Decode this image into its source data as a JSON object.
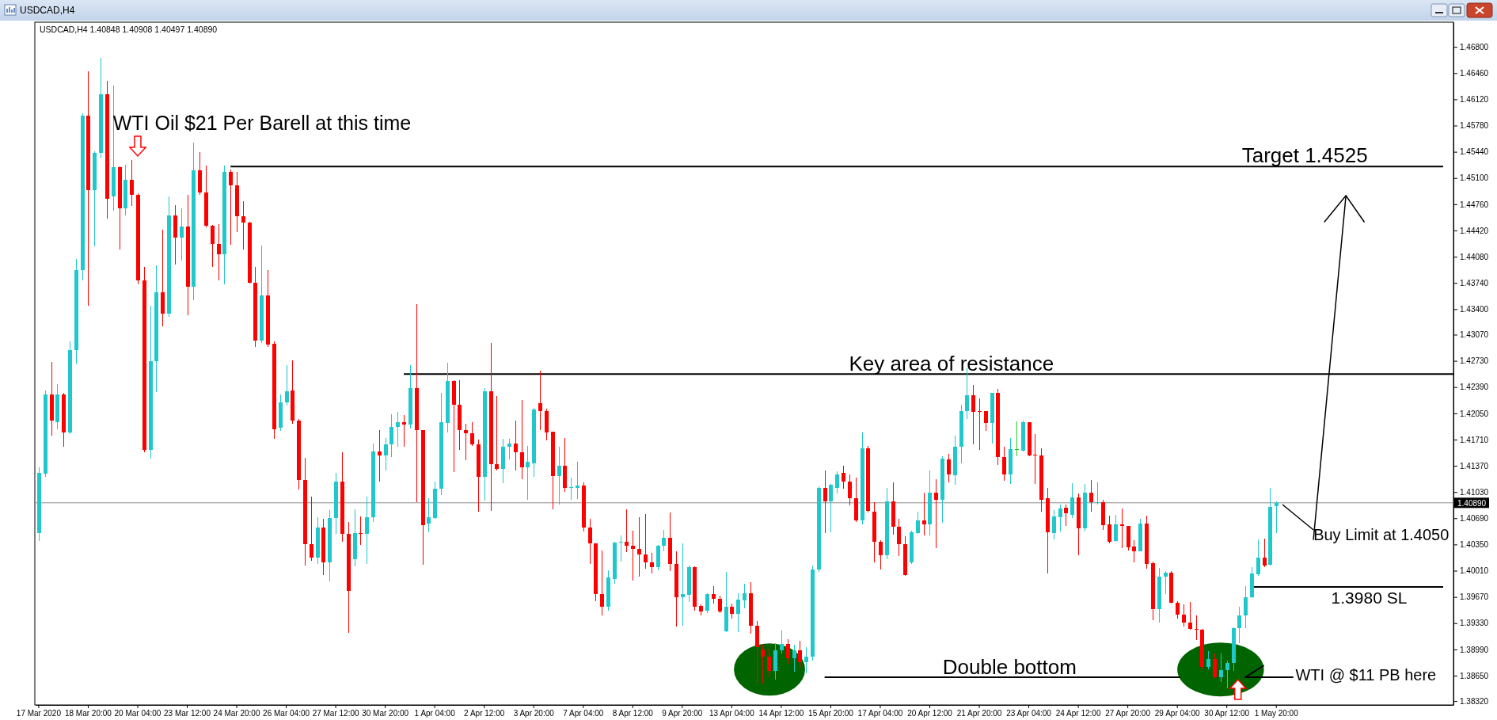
{
  "chart_data": {
    "type": "candlestick",
    "title": "USDCAD,H4",
    "subtitle": "USDCAD,H4 1.40848 1.40908 1.40497 1.40890",
    "categories": [
      "17 Mar 2020",
      null,
      null,
      null,
      null,
      null,
      null,
      null,
      "18 Mar 20:00",
      null,
      null,
      null,
      null,
      null,
      null,
      null,
      "20 Mar 04:00",
      null,
      null,
      null,
      null,
      null,
      null,
      null,
      "23 Mar 12:00",
      null,
      null,
      null,
      null,
      null,
      null,
      null,
      "24 Mar 20:00",
      null,
      null,
      null,
      null,
      null,
      null,
      null,
      "26 Mar 04:00",
      null,
      null,
      null,
      null,
      null,
      null,
      null,
      "27 Mar 12:00",
      null,
      null,
      null,
      null,
      null,
      null,
      null,
      "30 Mar 20:00",
      null,
      null,
      null,
      null,
      null,
      null,
      null,
      "1 Apr 04:00",
      null,
      null,
      null,
      null,
      null,
      null,
      null,
      "2 Apr 12:00",
      null,
      null,
      null,
      null,
      null,
      null,
      null,
      "3 Apr 20:00",
      null,
      null,
      null,
      null,
      null,
      null,
      null,
      "7 Apr 04:00",
      null,
      null,
      null,
      null,
      null,
      null,
      null,
      "8 Apr 12:00",
      null,
      null,
      null,
      null,
      null,
      null,
      null,
      "9 Apr 20:00",
      null,
      null,
      null,
      null,
      null,
      null,
      null,
      "13 Apr 04:00",
      null,
      null,
      null,
      null,
      null,
      null,
      null,
      "14 Apr 12:00",
      null,
      null,
      null,
      null,
      null,
      null,
      null,
      "15 Apr 20:00",
      null,
      null,
      null,
      null,
      null,
      null,
      null,
      "17 Apr 04:00",
      null,
      null,
      null,
      null,
      null,
      null,
      null,
      "20 Apr 12:00",
      null,
      null,
      null,
      null,
      null,
      null,
      null,
      "21 Apr 20:00",
      null,
      null,
      null,
      null,
      null,
      null,
      null,
      "23 Apr 04:00",
      null,
      null,
      null,
      null,
      null,
      null,
      null,
      "24 Apr 12:00",
      null,
      null,
      null,
      null,
      null,
      null,
      null,
      "27 Apr 20:00",
      null,
      null,
      null,
      null,
      null,
      null,
      null,
      "29 Apr 04:00",
      null,
      null,
      null,
      null,
      null,
      null,
      null,
      "30 Apr 12:00",
      null,
      null,
      null,
      null,
      null,
      null,
      null,
      "1 May 20:00",
      null,
      null,
      null,
      null,
      null,
      null,
      null,
      null,
      null,
      null,
      null,
      null,
      null,
      null,
      null,
      null,
      null,
      null,
      null,
      null,
      null,
      null,
      null,
      null,
      null,
      null,
      null,
      null
    ],
    "ohlc": [
      [
        1.405,
        1.4135,
        1.404,
        1.4128
      ],
      [
        1.4127,
        1.4235,
        1.4123,
        1.4229
      ],
      [
        1.4229,
        1.4272,
        1.4176,
        1.4196
      ],
      [
        1.4194,
        1.4243,
        1.4184,
        1.4229
      ],
      [
        1.4229,
        1.4231,
        1.4162,
        1.418
      ],
      [
        1.418,
        1.4298,
        1.4178,
        1.4287
      ],
      [
        1.4287,
        1.4405,
        1.4269,
        1.4391
      ],
      [
        1.4391,
        1.4594,
        1.4377,
        1.4591
      ],
      [
        1.4591,
        1.4648,
        1.4344,
        1.4494
      ],
      [
        1.4494,
        1.4545,
        1.4421,
        1.4543
      ],
      [
        1.4543,
        1.4666,
        1.4535,
        1.4619
      ],
      [
        1.4619,
        1.4636,
        1.4457,
        1.4483
      ],
      [
        1.4486,
        1.463,
        1.4468,
        1.4524
      ],
      [
        1.4524,
        1.4525,
        1.4417,
        1.4471
      ],
      [
        1.4471,
        1.4527,
        1.4461,
        1.4508
      ],
      [
        1.4508,
        1.4533,
        1.4474,
        1.4488
      ],
      [
        1.4488,
        1.449,
        1.4372,
        1.4377
      ],
      [
        1.4377,
        1.4395,
        1.4154,
        1.4158
      ],
      [
        1.4158,
        1.4344,
        1.4146,
        1.4273
      ],
      [
        1.4273,
        1.4397,
        1.4233,
        1.4362
      ],
      [
        1.4362,
        1.4443,
        1.4318,
        1.4334
      ],
      [
        1.4334,
        1.4486,
        1.433,
        1.4462
      ],
      [
        1.4462,
        1.4475,
        1.4398,
        1.4433
      ],
      [
        1.4433,
        1.4471,
        1.4403,
        1.4447
      ],
      [
        1.4447,
        1.4488,
        1.4332,
        1.4369
      ],
      [
        1.4369,
        1.4556,
        1.4352,
        1.452
      ],
      [
        1.452,
        1.4544,
        1.4488,
        1.4491
      ],
      [
        1.4491,
        1.4526,
        1.4446,
        1.4448
      ],
      [
        1.4448,
        1.4449,
        1.4395,
        1.4425
      ],
      [
        1.4425,
        1.445,
        1.4377,
        1.4411
      ],
      [
        1.4411,
        1.4526,
        1.4372,
        1.4518
      ],
      [
        1.4518,
        1.4521,
        1.4423,
        1.4501
      ],
      [
        1.4501,
        1.4518,
        1.444,
        1.446
      ],
      [
        1.446,
        1.448,
        1.4417,
        1.4452
      ],
      [
        1.4452,
        1.4453,
        1.4373,
        1.4374
      ],
      [
        1.4374,
        1.4395,
        1.4291,
        1.4299
      ],
      [
        1.4299,
        1.4422,
        1.4296,
        1.4358
      ],
      [
        1.4358,
        1.4391,
        1.4291,
        1.4294
      ],
      [
        1.4295,
        1.4298,
        1.4172,
        1.4184
      ],
      [
        1.4186,
        1.4229,
        1.4182,
        1.4219
      ],
      [
        1.4219,
        1.4267,
        1.4215,
        1.4234
      ],
      [
        1.4235,
        1.4274,
        1.4191,
        1.4196
      ],
      [
        1.4196,
        1.4198,
        1.4106,
        1.4119
      ],
      [
        1.4119,
        1.4147,
        1.4008,
        1.4035
      ],
      [
        1.4035,
        1.4097,
        1.4014,
        1.4018
      ],
      [
        1.4018,
        1.407,
        1.401,
        1.4057
      ],
      [
        1.4057,
        1.4068,
        1.3995,
        1.4012
      ],
      [
        1.4012,
        1.408,
        1.3987,
        1.4069
      ],
      [
        1.4069,
        1.4128,
        1.4049,
        1.4117
      ],
      [
        1.4117,
        1.4154,
        1.4038,
        1.4049
      ],
      [
        1.4049,
        1.4064,
        1.392,
        1.3975
      ],
      [
        1.4016,
        1.4081,
        1.4007,
        1.405
      ],
      [
        1.405,
        1.4071,
        1.4034,
        1.4049
      ],
      [
        1.4049,
        1.4097,
        1.401,
        1.407
      ],
      [
        1.407,
        1.4166,
        1.4064,
        1.4156
      ],
      [
        1.4156,
        1.4183,
        1.4117,
        1.415
      ],
      [
        1.415,
        1.4173,
        1.4131,
        1.4165
      ],
      [
        1.4165,
        1.4204,
        1.4148,
        1.4187
      ],
      [
        1.4187,
        1.4207,
        1.4162,
        1.4194
      ],
      [
        1.4194,
        1.4203,
        1.4162,
        1.419
      ],
      [
        1.419,
        1.4267,
        1.4185,
        1.4238
      ],
      [
        1.4238,
        1.4347,
        1.409,
        1.4183
      ],
      [
        1.4183,
        1.4183,
        1.4009,
        1.406
      ],
      [
        1.4062,
        1.4095,
        1.4051,
        1.407
      ],
      [
        1.4069,
        1.4117,
        1.4068,
        1.4107
      ],
      [
        1.4107,
        1.4231,
        1.4099,
        1.4194
      ],
      [
        1.4193,
        1.4271,
        1.418,
        1.4247
      ],
      [
        1.4247,
        1.4248,
        1.4129,
        1.4216
      ],
      [
        1.4216,
        1.4248,
        1.4158,
        1.4183
      ],
      [
        1.4183,
        1.4191,
        1.4144,
        1.4179
      ],
      [
        1.4179,
        1.4194,
        1.4163,
        1.4165
      ],
      [
        1.4165,
        1.4171,
        1.4077,
        1.4123
      ],
      [
        1.4123,
        1.4238,
        1.4092,
        1.4234
      ],
      [
        1.4234,
        1.4296,
        1.4079,
        1.4139
      ],
      [
        1.4139,
        1.4227,
        1.4131,
        1.4133
      ],
      [
        1.4133,
        1.4172,
        1.4114,
        1.4162
      ],
      [
        1.4162,
        1.4172,
        1.4145,
        1.4166
      ],
      [
        1.4166,
        1.4196,
        1.4131,
        1.4154
      ],
      [
        1.4155,
        1.4222,
        1.412,
        1.4135
      ],
      [
        1.4135,
        1.4163,
        1.4093,
        1.4142
      ],
      [
        1.414,
        1.4212,
        1.4123,
        1.421
      ],
      [
        1.4218,
        1.426,
        1.4183,
        1.4208
      ],
      [
        1.4208,
        1.4211,
        1.417,
        1.418
      ],
      [
        1.4181,
        1.4181,
        1.4081,
        1.4124
      ],
      [
        1.4124,
        1.4162,
        1.4087,
        1.4137
      ],
      [
        1.4137,
        1.4173,
        1.4103,
        1.4108
      ],
      [
        1.4108,
        1.4122,
        1.4093,
        1.4109
      ],
      [
        1.4108,
        1.4142,
        1.4094,
        1.4111
      ],
      [
        1.4111,
        1.4116,
        1.4052,
        1.4057
      ],
      [
        1.4057,
        1.4068,
        1.401,
        1.4036
      ],
      [
        1.4036,
        1.4036,
        1.3961,
        1.3971
      ],
      [
        1.3971,
        1.4027,
        1.3943,
        1.3954
      ],
      [
        1.3954,
        1.4002,
        1.3949,
        1.3992
      ],
      [
        1.399,
        1.4039,
        1.3984,
        1.4037
      ],
      [
        1.4037,
        1.4047,
        1.4013,
        1.4038
      ],
      [
        1.4038,
        1.4081,
        1.4025,
        1.4033
      ],
      [
        1.4033,
        1.4053,
        1.3988,
        1.4029
      ],
      [
        1.4029,
        1.407,
        1.3993,
        1.4022
      ],
      [
        1.4022,
        1.4074,
        1.4004,
        1.4012
      ],
      [
        1.4012,
        1.4024,
        1.3997,
        1.4006
      ],
      [
        1.4006,
        1.4034,
        1.4002,
        1.4033
      ],
      [
        1.4033,
        1.4054,
        1.4026,
        1.4044
      ],
      [
        1.4044,
        1.4076,
        1.4001,
        1.401
      ],
      [
        1.401,
        1.4026,
        1.3929,
        1.3967
      ],
      [
        1.3967,
        1.4036,
        1.393,
        1.3971
      ],
      [
        1.397,
        1.4008,
        1.396,
        1.4006
      ],
      [
        1.4006,
        1.4007,
        1.3949,
        1.3954
      ],
      [
        1.3955,
        1.3957,
        1.3943,
        1.3948
      ],
      [
        1.3949,
        1.3972,
        1.3946,
        1.3971
      ],
      [
        1.3971,
        1.3981,
        1.3958,
        1.3965
      ],
      [
        1.3965,
        1.3969,
        1.3946,
        1.3948
      ],
      [
        1.3922,
        1.3999,
        1.3921,
        1.3954
      ],
      [
        1.3954,
        1.3958,
        1.3939,
        1.3945
      ],
      [
        1.3945,
        1.3972,
        1.3921,
        1.3964
      ],
      [
        1.3963,
        1.3984,
        1.3952,
        1.3972
      ],
      [
        1.3972,
        1.3986,
        1.3919,
        1.393
      ],
      [
        1.393,
        1.3936,
        1.3854,
        1.3902
      ],
      [
        1.3899,
        1.3905,
        1.3855,
        1.389
      ],
      [
        1.389,
        1.39,
        1.3863,
        1.3871
      ],
      [
        1.3871,
        1.3907,
        1.386,
        1.3898
      ],
      [
        1.3898,
        1.3923,
        1.3894,
        1.3906
      ],
      [
        1.3906,
        1.3912,
        1.388,
        1.3888
      ],
      [
        1.3888,
        1.3905,
        1.387,
        1.3898
      ],
      [
        1.3898,
        1.391,
        1.3875,
        1.3882
      ],
      [
        1.3882,
        1.3902,
        1.3868,
        1.389
      ],
      [
        1.389,
        1.4008,
        1.3885,
        1.4003
      ],
      [
        1.4003,
        1.411,
        1.3999,
        1.4108
      ],
      [
        1.4108,
        1.4131,
        1.405,
        1.4091
      ],
      [
        1.4091,
        1.4113,
        1.4051,
        1.4112
      ],
      [
        1.4108,
        1.413,
        1.4101,
        1.4126
      ],
      [
        1.4128,
        1.4137,
        1.4107,
        1.4117
      ],
      [
        1.4117,
        1.4126,
        1.4086,
        1.4095
      ],
      [
        1.4095,
        1.4122,
        1.4064,
        1.4066
      ],
      [
        1.4066,
        1.418,
        1.4061,
        1.416
      ],
      [
        1.416,
        1.4163,
        1.4076,
        1.4079
      ],
      [
        1.4077,
        1.409,
        1.4012,
        1.4039
      ],
      [
        1.4039,
        1.4041,
        1.4003,
        1.4021
      ],
      [
        1.4021,
        1.4108,
        1.4016,
        1.4091
      ],
      [
        1.4091,
        1.4116,
        1.4048,
        1.4058
      ],
      [
        1.4058,
        1.4068,
        1.402,
        1.4035
      ],
      [
        1.4035,
        1.4046,
        1.3994,
        1.3995
      ],
      [
        1.4012,
        1.4053,
        1.401,
        1.4051
      ],
      [
        1.405,
        1.4077,
        1.4049,
        1.4066
      ],
      [
        1.4066,
        1.4102,
        1.4047,
        1.4061
      ],
      [
        1.4061,
        1.4131,
        1.4047,
        1.4102
      ],
      [
        1.4102,
        1.412,
        1.403,
        1.4093
      ],
      [
        1.4093,
        1.4149,
        1.4063,
        1.4146
      ],
      [
        1.4145,
        1.4152,
        1.4116,
        1.4126
      ],
      [
        1.4125,
        1.4176,
        1.4112,
        1.4162
      ],
      [
        1.4162,
        1.4216,
        1.414,
        1.4208
      ],
      [
        1.4208,
        1.4263,
        1.4198,
        1.4228
      ],
      [
        1.4228,
        1.4242,
        1.4165,
        1.4207
      ],
      [
        1.4208,
        1.4224,
        1.4158,
        1.4207
      ],
      [
        1.4208,
        1.4208,
        1.4182,
        1.4193
      ],
      [
        1.4193,
        1.4232,
        1.4166,
        1.4232
      ],
      [
        1.4232,
        1.4237,
        1.4138,
        1.4148
      ],
      [
        1.4148,
        1.4162,
        1.4118,
        1.4126
      ],
      [
        1.4126,
        1.4173,
        1.4113,
        1.4159
      ],
      [
        1.4159,
        1.4195,
        1.4149,
        1.4159
      ],
      [
        1.4157,
        1.4196,
        1.4156,
        1.4194
      ],
      [
        1.4194,
        1.4194,
        1.4149,
        1.415
      ],
      [
        1.4151,
        1.4178,
        1.4113,
        1.415
      ],
      [
        1.415,
        1.416,
        1.4078,
        1.4093
      ],
      [
        1.4095,
        1.4108,
        1.3997,
        1.4051
      ],
      [
        1.405,
        1.408,
        1.4042,
        1.4071
      ],
      [
        1.407,
        1.4087,
        1.4052,
        1.4082
      ],
      [
        1.4083,
        1.4087,
        1.4059,
        1.4075
      ],
      [
        1.4073,
        1.4114,
        1.4069,
        1.4096
      ],
      [
        1.4096,
        1.4101,
        1.4021,
        1.4056
      ],
      [
        1.4056,
        1.4113,
        1.4052,
        1.4102
      ],
      [
        1.4102,
        1.4119,
        1.4078,
        1.409
      ],
      [
        1.4089,
        1.4115,
        1.4087,
        1.409
      ],
      [
        1.409,
        1.4093,
        1.4054,
        1.406
      ],
      [
        1.4061,
        1.4072,
        1.4036,
        1.4039
      ],
      [
        1.404,
        1.4073,
        1.4038,
        1.4061
      ],
      [
        1.4061,
        1.4082,
        1.403,
        1.4059
      ],
      [
        1.4059,
        1.4059,
        1.4027,
        1.4031
      ],
      [
        1.4032,
        1.4041,
        1.4012,
        1.4026
      ],
      [
        1.4026,
        1.4068,
        1.4026,
        1.4062
      ],
      [
        1.4062,
        1.4072,
        1.4004,
        1.401
      ],
      [
        1.4011,
        1.4013,
        1.3937,
        1.3951
      ],
      [
        1.3951,
        1.4005,
        1.3934,
        1.3993
      ],
      [
        1.3993,
        1.4,
        1.3971,
        1.3998
      ],
      [
        1.3998,
        1.4001,
        1.3958,
        1.3959
      ],
      [
        1.3959,
        1.3961,
        1.3939,
        1.3944
      ],
      [
        1.3944,
        1.3957,
        1.3929,
        1.3934
      ],
      [
        1.3934,
        1.396,
        1.3925,
        1.3926
      ],
      [
        1.3926,
        1.3943,
        1.3911,
        1.3925
      ],
      [
        1.3925,
        1.3926,
        1.3873,
        1.3876
      ],
      [
        1.3876,
        1.3897,
        1.3873,
        1.3887
      ],
      [
        1.3887,
        1.3894,
        1.3862,
        1.3863
      ],
      [
        1.3863,
        1.3894,
        1.3857,
        1.3872
      ],
      [
        1.3872,
        1.3884,
        1.3849,
        1.3881
      ],
      [
        1.3881,
        1.3928,
        1.3871,
        1.3927
      ],
      [
        1.3927,
        1.3954,
        1.3907,
        1.3943
      ],
      [
        1.3943,
        1.3981,
        1.3927,
        1.3967
      ],
      [
        1.3967,
        1.4006,
        1.3966,
        1.3997
      ],
      [
        1.3996,
        1.4042,
        1.3994,
        1.4018
      ],
      [
        1.4018,
        1.4043,
        1.4006,
        1.4008
      ],
      [
        1.4009,
        1.4108,
        1.4008,
        1.4084
      ],
      [
        1.40848,
        1.40908,
        1.40497,
        1.4089
      ],
      null,
      null,
      null,
      null,
      null,
      null,
      null,
      null,
      null,
      null,
      null,
      null,
      null,
      null,
      null,
      null,
      null,
      null,
      null,
      null,
      null,
      null,
      null,
      null,
      null,
      null,
      null,
      null
    ],
    "colors": [
      "#20c8cc",
      "#20c8cc",
      "#ff0000",
      "#20c8cc",
      "#ff0000",
      "#20c8cc",
      "#20c8cc",
      "#20c8cc",
      "#ff0000",
      "#20c8cc",
      "#20c8cc",
      "#ff0000",
      "#20c8cc",
      "#ff0000",
      "#20c8cc",
      "#ff0000",
      "#ff0000",
      "#ff0000",
      "#20c8cc",
      "#20c8cc",
      "#ff0000",
      "#20c8cc",
      "#ff0000",
      "#20c8cc",
      "#ff0000",
      "#20c8cc",
      "#ff0000",
      "#ff0000",
      "#ff0000",
      "#ff0000",
      "#20c8cc",
      "#ff0000",
      "#ff0000",
      "#ff0000",
      "#ff0000",
      "#ff0000",
      "#20c8cc",
      "#ff0000",
      "#ff0000",
      "#20c8cc",
      "#20c8cc",
      "#ff0000",
      "#ff0000",
      "#ff0000",
      "#ff0000",
      "#20c8cc",
      "#ff0000",
      "#20c8cc",
      "#20c8cc",
      "#ff0000",
      "#ff0000",
      "#20c8cc",
      "#ff0000",
      "#20c8cc",
      "#20c8cc",
      "#ff0000",
      "#20c8cc",
      "#20c8cc",
      "#20c8cc",
      "#ff0000",
      "#20c8cc",
      "#ff0000",
      "#ff0000",
      "#20c8cc",
      "#20c8cc",
      "#20c8cc",
      "#20c8cc",
      "#ff0000",
      "#ff0000",
      "#ff0000",
      "#ff0000",
      "#ff0000",
      "#20c8cc",
      "#ff0000",
      "#ff0000",
      "#20c8cc",
      "#20c8cc",
      "#ff0000",
      "#ff0000",
      "#20c8cc",
      "#20c8cc",
      "#ff0000",
      "#ff0000",
      "#ff0000",
      "#20c8cc",
      "#ff0000",
      "#20c8cc",
      "#20c8cc",
      "#ff0000",
      "#ff0000",
      "#ff0000",
      "#ff0000",
      "#20c8cc",
      "#20c8cc",
      "#20c8cc",
      "#ff0000",
      "#ff0000",
      "#ff0000",
      "#ff0000",
      "#ff0000",
      "#20c8cc",
      "#20c8cc",
      "#ff0000",
      "#ff0000",
      "#20c8cc",
      "#20c8cc",
      "#ff0000",
      "#ff0000",
      "#20c8cc",
      "#ff0000",
      "#ff0000",
      "#20c8cc",
      "#ff0000",
      "#20c8cc",
      "#20c8cc",
      "#ff0000",
      "#ff0000",
      "#ff0000",
      "#ff0000",
      "#20c8cc",
      "#20c8cc",
      "#ff0000",
      "#20c8cc",
      "#ff0000",
      "#20c8cc",
      "#20c8cc",
      "#20c8cc",
      "#ff0000",
      "#20c8cc",
      "#20c8cc",
      "#ff0000",
      "#ff0000",
      "#ff0000",
      "#20c8cc",
      "#ff0000",
      "#ff0000",
      "#ff0000",
      "#20c8cc",
      "#ff0000",
      "#ff0000",
      "#ff0000",
      "#20c8cc",
      "#20c8cc",
      "#ff0000",
      "#20c8cc",
      "#ff0000",
      "#20c8cc",
      "#ff0000",
      "#20c8cc",
      "#20c8cc",
      "#20c8cc",
      "#ff0000",
      "#ff0000",
      "#ff0000",
      "#20c8cc",
      "#ff0000",
      "#ff0000",
      "#20c8cc",
      "#22cc22",
      "#20c8cc",
      "#ff0000",
      "#ff0000",
      "#ff0000",
      "#ff0000",
      "#20c8cc",
      "#20c8cc",
      "#ff0000",
      "#20c8cc",
      "#ff0000",
      "#20c8cc",
      "#ff0000",
      "#20c8cc",
      "#ff0000",
      "#ff0000",
      "#20c8cc",
      "#ff0000",
      "#ff0000",
      "#ff0000",
      "#20c8cc",
      "#ff0000",
      "#ff0000",
      "#20c8cc",
      "#20c8cc",
      "#ff0000",
      "#ff0000",
      "#ff0000",
      "#ff0000",
      "#ff0000",
      "#ff0000",
      "#20c8cc",
      "#ff0000",
      "#20c8cc",
      "#20c8cc",
      "#20c8cc",
      "#20c8cc",
      "#20c8cc",
      "#20c8cc",
      "#20c8cc",
      "#ff0000",
      "#20c8cc",
      "#20c8cc",
      null,
      null,
      null,
      null,
      null,
      null,
      null,
      null,
      null,
      null,
      null,
      null,
      null,
      null,
      null,
      null,
      null,
      null,
      null,
      null,
      null,
      null,
      null,
      null,
      null,
      null,
      null,
      null
    ],
    "ylim": [
      1.3827,
      1.4712
    ],
    "yticks": [
      {
        "value": 1.468,
        "label": "1.46800"
      },
      {
        "value": 1.4646,
        "label": "1.46460"
      },
      {
        "value": 1.4612,
        "label": "1.46120"
      },
      {
        "value": 1.4578,
        "label": "1.45780"
      },
      {
        "value": 1.4544,
        "label": "1.45440"
      },
      {
        "value": 1.451,
        "label": "1.45100"
      },
      {
        "value": 1.4476,
        "label": "1.44760"
      },
      {
        "value": 1.4442,
        "label": "1.44420"
      },
      {
        "value": 1.4408,
        "label": "1.44080"
      },
      {
        "value": 1.4374,
        "label": "1.43740"
      },
      {
        "value": 1.434,
        "label": "1.43400"
      },
      {
        "value": 1.4307,
        "label": "1.43070"
      },
      {
        "value": 1.4273,
        "label": "1.42730"
      },
      {
        "value": 1.4239,
        "label": "1.42390"
      },
      {
        "value": 1.4205,
        "label": "1.42050"
      },
      {
        "value": 1.4171,
        "label": "1.41710"
      },
      {
        "value": 1.4137,
        "label": "1.41370"
      },
      {
        "value": 1.4103,
        "label": "1.41030"
      },
      {
        "value": 1.4069,
        "label": "1.40690"
      },
      {
        "value": 1.4035,
        "label": "1.40350"
      },
      {
        "value": 1.4001,
        "label": "1.40010"
      },
      {
        "value": 1.3967,
        "label": "1.39670"
      },
      {
        "value": 1.3933,
        "label": "1.39330"
      },
      {
        "value": 1.3899,
        "label": "1.38990"
      },
      {
        "value": 1.3865,
        "label": "1.38650"
      },
      {
        "value": 1.3832,
        "label": "1.38320"
      }
    ],
    "ref_lines": [
      {
        "axis": "y",
        "value": 1.4525,
        "label": "Target 1.4525",
        "color": "#000000"
      },
      {
        "axis": "y",
        "value": 1.4256,
        "label": "Key area of resistance",
        "color": "#000000"
      },
      {
        "axis": "y",
        "value": 1.4089,
        "label": "1.40890",
        "color": "#8c8c8c"
      },
      {
        "axis": "y",
        "value": 1.398,
        "label": "1.3980 SL",
        "color": "#000000"
      },
      {
        "axis": "y",
        "value": 1.3863,
        "label": "Double bottom",
        "color": "#000000"
      }
    ],
    "annotations": [
      "WTI Oil $21 Per Barell at this time",
      "Buy Limit at 1.4050",
      "WTI @ $11 PB here"
    ]
  }
}
